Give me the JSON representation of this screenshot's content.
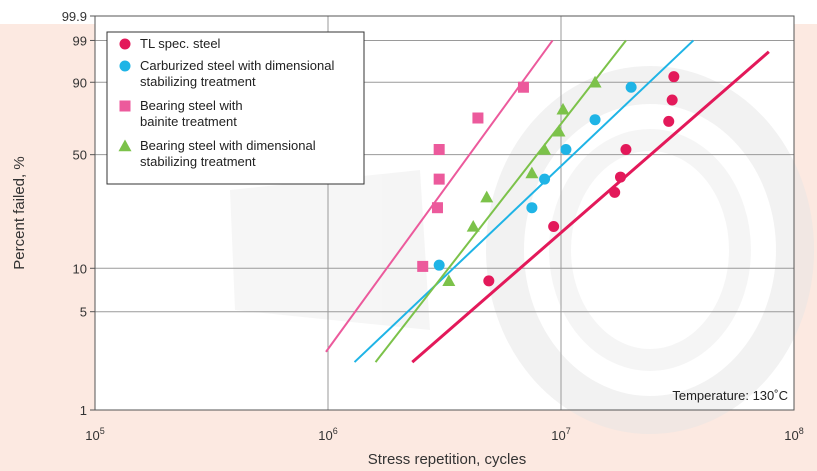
{
  "chart_data": {
    "type": "scatter",
    "title": "",
    "xlabel": "Stress repetition, cycles",
    "ylabel": "Percent failed, %",
    "x_scale": "log",
    "y_scale": "weibull",
    "xlim": [
      100000,
      100000000
    ],
    "ylim": [
      1,
      99.9
    ],
    "x_ticks": [
      {
        "value": 100000,
        "base": "10",
        "exp": "5"
      },
      {
        "value": 1000000,
        "base": "10",
        "exp": "6"
      },
      {
        "value": 10000000,
        "base": "10",
        "exp": "7"
      },
      {
        "value": 100000000,
        "base": "10",
        "exp": "8"
      }
    ],
    "y_ticks": [
      {
        "value": 1,
        "label": "1"
      },
      {
        "value": 5,
        "label": "5"
      },
      {
        "value": 10,
        "label": "10"
      },
      {
        "value": 50,
        "label": "50"
      },
      {
        "value": 90,
        "label": "90"
      },
      {
        "value": 99,
        "label": "99"
      },
      {
        "value": 99.9,
        "label": "99.9"
      }
    ],
    "grid": true,
    "legend_position": "top-left",
    "annotation": "Temperature: 130˚C",
    "series": [
      {
        "name": "TL spec. steel",
        "marker": "circle",
        "color": "#e3195a",
        "points": [
          [
            4900000,
            8.2
          ],
          [
            9300000,
            19
          ],
          [
            17000000,
            31
          ],
          [
            18000000,
            38
          ],
          [
            19000000,
            53
          ],
          [
            29000000,
            70
          ],
          [
            30000000,
            82
          ],
          [
            30500000,
            92
          ]
        ],
        "fit_line": [
          [
            2300000,
            2.2
          ],
          [
            78000000,
            97.8
          ]
        ]
      },
      {
        "name": "Carburized steel with dimensional\nstabilizing treatment",
        "marker": "circle",
        "color": "#1fb4e6",
        "points": [
          [
            3000000,
            10.5
          ],
          [
            7500000,
            25
          ],
          [
            8500000,
            37
          ],
          [
            10500000,
            53
          ],
          [
            14000000,
            71
          ],
          [
            20000000,
            88
          ]
        ],
        "fit_line": [
          [
            1300000,
            2.2
          ],
          [
            37000000,
            99.0
          ]
        ]
      },
      {
        "name": "Bearing steel with\nbainite treatment",
        "marker": "square",
        "color": "#ec5a9c",
        "points": [
          [
            2550000,
            10.3
          ],
          [
            2950000,
            25
          ],
          [
            3000000,
            37
          ],
          [
            3000000,
            53
          ],
          [
            4400000,
            72
          ],
          [
            6900000,
            88
          ]
        ],
        "fit_line": [
          [
            980000,
            2.6
          ],
          [
            9200000,
            99.0
          ]
        ]
      },
      {
        "name": "Bearing steel with dimensional\nstabilizing treatment",
        "marker": "triangle",
        "color": "#7cc24a",
        "points": [
          [
            3300000,
            8.2
          ],
          [
            4200000,
            19
          ],
          [
            4800000,
            29
          ],
          [
            7500000,
            40
          ],
          [
            8500000,
            53
          ],
          [
            9800000,
            64
          ],
          [
            10200000,
            77
          ],
          [
            14000000,
            90
          ]
        ],
        "fit_line": [
          [
            1600000,
            2.2
          ],
          [
            19000000,
            99.0
          ]
        ]
      }
    ]
  }
}
